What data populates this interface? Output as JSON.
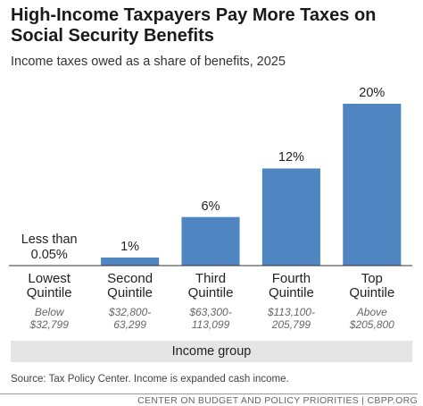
{
  "chart_data": {
    "type": "bar",
    "title": "High-Income Taxpayers Pay More Taxes on Social Security Benefits",
    "subtitle": "Income taxes owed as a share of benefits, 2025",
    "categories": [
      "Lowest Quintile",
      "Second Quintile",
      "Third Quintile",
      "Fourth Quintile",
      "Top Quintile"
    ],
    "category_ranges": [
      "Below $32,799",
      "$32,800-63,299",
      "$63,300-113,099",
      "$113,100-205,799",
      "Above $205,800"
    ],
    "values": [
      0.05,
      1,
      6,
      12,
      20
    ],
    "value_labels": [
      "Less than 0.05%",
      "1%",
      "6%",
      "12%",
      "20%"
    ],
    "color": "#4f86c1",
    "ylim": [
      0,
      20
    ],
    "xlabel": "Income group",
    "source": "Source: Tax Policy Center. Income is expanded cash income.",
    "footer": "CENTER ON BUDGET AND POLICY PRIORITIES | CBPP.ORG"
  }
}
